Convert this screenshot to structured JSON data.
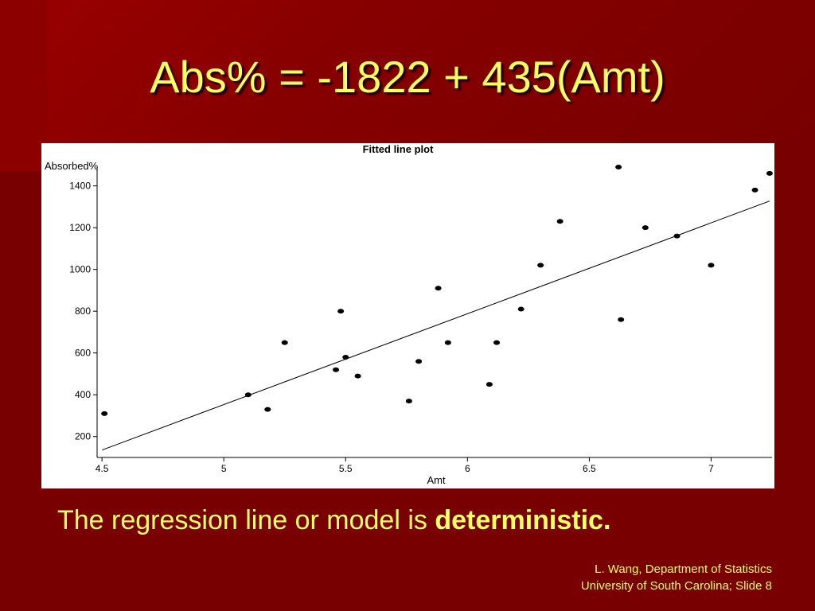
{
  "slide": {
    "title": "Abs% = -1822 + 435(Amt)",
    "caption_prefix": "The regression line or model is ",
    "caption_emphasis": "deterministic.",
    "footer_line1": "L. Wang, Department of Statistics",
    "footer_line2": "University of South Carolina; Slide 8"
  },
  "chart_data": {
    "type": "scatter",
    "title": "Fitted line plot",
    "xlabel": "Amt",
    "ylabel": "Absorbed%",
    "xlim": [
      4.48,
      7.25
    ],
    "ylim": [
      100,
      1490
    ],
    "xticks": [
      4.5,
      5,
      5.5,
      6,
      6.5,
      7
    ],
    "xtick_labels": [
      "4.5",
      "5",
      "5.5",
      "6",
      "6.5",
      "7"
    ],
    "yticks": [
      200,
      400,
      600,
      800,
      1000,
      1200,
      1400
    ],
    "ytick_labels": [
      "200",
      "400",
      "600",
      "800",
      "1000",
      "1200",
      "1400"
    ],
    "grid": false,
    "legend": "none",
    "points": [
      {
        "x": 4.51,
        "y": 310
      },
      {
        "x": 5.1,
        "y": 400
      },
      {
        "x": 5.18,
        "y": 330
      },
      {
        "x": 5.25,
        "y": 650
      },
      {
        "x": 5.46,
        "y": 520
      },
      {
        "x": 5.48,
        "y": 800
      },
      {
        "x": 5.5,
        "y": 580
      },
      {
        "x": 5.55,
        "y": 490
      },
      {
        "x": 5.76,
        "y": 370
      },
      {
        "x": 5.8,
        "y": 560
      },
      {
        "x": 5.88,
        "y": 910
      },
      {
        "x": 5.92,
        "y": 650
      },
      {
        "x": 6.09,
        "y": 450
      },
      {
        "x": 6.12,
        "y": 650
      },
      {
        "x": 6.22,
        "y": 810
      },
      {
        "x": 6.3,
        "y": 1020
      },
      {
        "x": 6.38,
        "y": 1230
      },
      {
        "x": 6.62,
        "y": 1490
      },
      {
        "x": 6.63,
        "y": 760
      },
      {
        "x": 6.73,
        "y": 1200
      },
      {
        "x": 6.86,
        "y": 1160
      },
      {
        "x": 7.0,
        "y": 1020
      },
      {
        "x": 7.18,
        "y": 1380
      },
      {
        "x": 7.24,
        "y": 1460
      }
    ],
    "fitted_line": {
      "intercept": -1822,
      "slope": 435,
      "x_start": 4.5,
      "x_end": 7.24
    }
  }
}
